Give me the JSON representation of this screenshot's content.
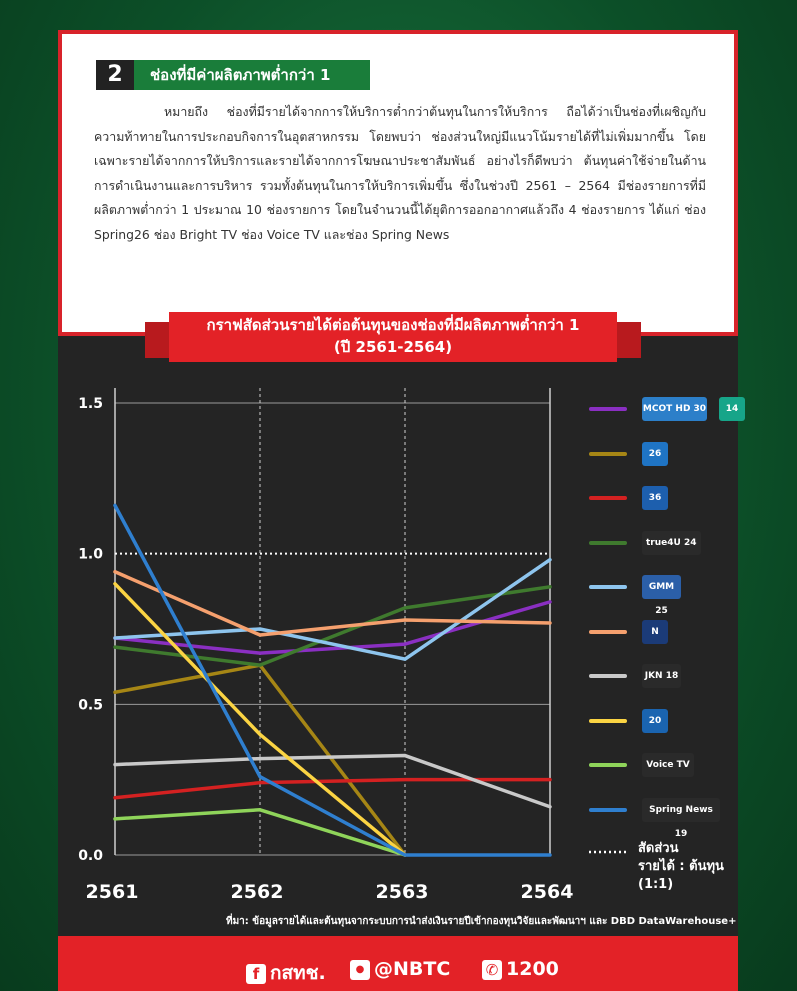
{
  "section": {
    "number": "2",
    "title": "ช่องที่มีค่าผลิตภาพต่ำกว่า 1",
    "paragraph": "หมายถึง ช่องที่มีรายได้จากการให้บริการต่ำกว่าต้นทุนในการให้บริการ ถือได้ว่าเป็นช่องที่เผชิญกับความท้าทายในการประกอบกิจการในอุตสาหกรรม โดยพบว่า ช่องส่วนใหญ่มีแนวโน้มรายได้ที่ไม่เพิ่มมากขึ้น โดยเฉพาะรายได้จากการให้บริการและรายได้จากการโฆษณาประชาสัมพันธ์ อย่างไรก็ดีพบว่า ต้นทุนค่าใช้จ่ายในด้านการดำเนินงานและการบริหาร รวมทั้งต้นทุนในการให้บริการเพิ่มขึ้น ซึ่งในช่วงปี 2561 – 2564 มีช่องรายการที่มีผลิตภาพต่ำกว่า 1 ประมาณ 10 ช่องรายการ โดยในจำนวนนี้ได้ยุติการออกอากาศแล้วถึง 4 ช่องรายการ ได้แก่ ช่อง Spring26 ช่อง Bright TV ช่อง Voice TV และช่อง Spring News"
  },
  "chart_title": {
    "line1": "กราฟสัดส่วนรายได้ต่อต้นทุนของช่องที่มีผลิตภาพต่ำกว่า 1",
    "line2": "(ปี 2561-2564)"
  },
  "chart_data": {
    "type": "line",
    "x": [
      "2561",
      "2562",
      "2563",
      "2564"
    ],
    "ylim": [
      0,
      1.5
    ],
    "yticks": [
      "0.0",
      "0.5",
      "1.0",
      "1.5"
    ],
    "reference": {
      "value": 1.0,
      "label_line1": "สัดส่วน",
      "label_line2": "รายได้ : ต้นทุน",
      "label_line3": "(1:1)"
    },
    "series": [
      {
        "logos": [
          "MCOT HD 30",
          "14"
        ],
        "color": "#8a2fc2",
        "values": [
          0.72,
          0.67,
          0.7,
          0.84
        ]
      },
      {
        "logos": [
          "26"
        ],
        "color": "#a68615",
        "values": [
          0.54,
          0.63,
          0.0,
          null
        ]
      },
      {
        "logos": [
          "36"
        ],
        "color": "#d42121",
        "values": [
          0.19,
          0.24,
          0.25,
          0.25
        ]
      },
      {
        "logos": [
          "true4U 24"
        ],
        "color": "#3f7a2e",
        "values": [
          0.69,
          0.63,
          0.82,
          0.89
        ]
      },
      {
        "logos": [
          "GMM 25"
        ],
        "color": "#8ec5ee",
        "values": [
          0.72,
          0.75,
          0.65,
          0.98
        ]
      },
      {
        "logos": [
          "N"
        ],
        "color": "#f5a06e",
        "values": [
          0.94,
          0.73,
          0.78,
          0.77
        ]
      },
      {
        "logos": [
          "JKN 18"
        ],
        "color": "#c9c9c9",
        "values": [
          0.3,
          0.32,
          0.33,
          0.16
        ]
      },
      {
        "logos": [
          "20"
        ],
        "color": "#fbd443",
        "values": [
          0.9,
          0.4,
          0.0,
          null
        ]
      },
      {
        "logos": [
          "Voice TV"
        ],
        "color": "#8fd45a",
        "values": [
          0.12,
          0.15,
          0.0,
          null
        ]
      },
      {
        "logos": [
          "Spring News 19"
        ],
        "color": "#2f7fcf",
        "values": [
          1.16,
          0.26,
          0.0,
          0.0
        ]
      }
    ]
  },
  "source": "ที่มา: ข้อมูลรายได้และต้นทุนจากระบบการนำส่งเงินรายปีเข้ากองทุนวิจัยและพัฒนาฯ และ DBD DataWarehouse+",
  "footer": {
    "facebook": "กสทช.",
    "line": "@NBTC",
    "phone": "1200"
  }
}
